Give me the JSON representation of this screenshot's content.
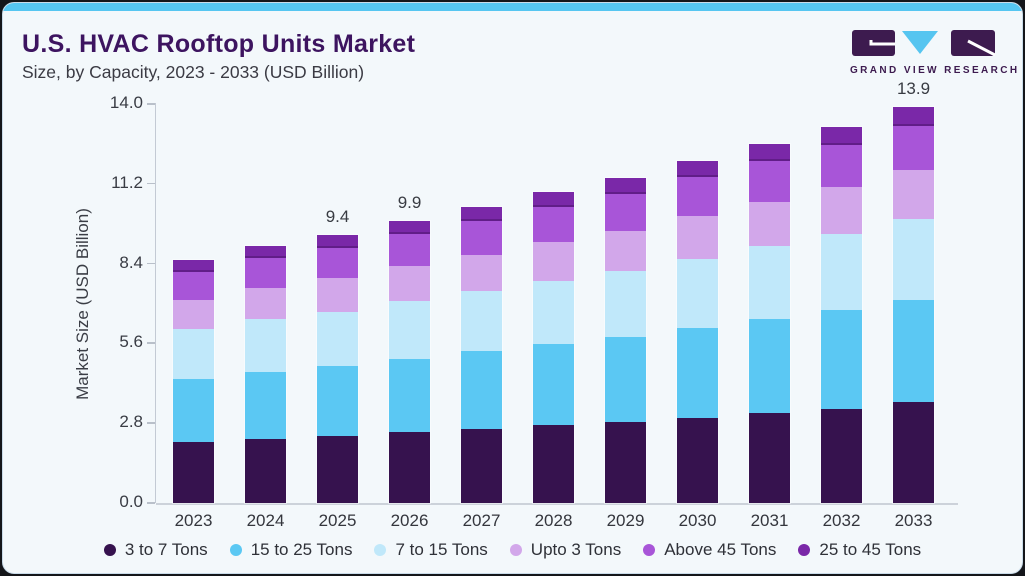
{
  "header": {
    "title": "U.S. HVAC Rooftop Units Market",
    "subtitle": "Size, by Capacity, 2023 - 2033 (USD Billion)",
    "logo_text": "GRAND VIEW RESEARCH"
  },
  "colors": {
    "accent_bar": "#56c6f1",
    "card_background": "#f3f8fb",
    "title_text": "#3d1460",
    "subtitle_text": "#3b3b44",
    "axis_line": "#c3cad4",
    "logo_dark": "#3d1b4f",
    "logo_blue": "#56c5f0"
  },
  "chart_data": {
    "type": "bar",
    "stacked": true,
    "title": "U.S. HVAC Rooftop Units Market Size, by Capacity, 2023 - 2033 (USD Billion)",
    "xlabel": "",
    "ylabel": "Market Size (USD Billion)",
    "ylim": [
      0,
      14
    ],
    "yticks": [
      "0.0",
      "2.8",
      "5.6",
      "8.4",
      "11.2",
      "14.0"
    ],
    "grid": false,
    "legend_position": "bottom",
    "categories": [
      "2023",
      "2024",
      "2025",
      "2026",
      "2027",
      "2028",
      "2029",
      "2030",
      "2031",
      "2032",
      "2033"
    ],
    "series": [
      {
        "name": "3 to 7 Tons",
        "color": "#36124e",
        "values": [
          2.13,
          2.25,
          2.35,
          2.48,
          2.6,
          2.73,
          2.85,
          3.0,
          3.15,
          3.3,
          3.55
        ]
      },
      {
        "name": "15 to 25 Tons",
        "color": "#5bc8f3",
        "values": [
          2.23,
          2.36,
          2.46,
          2.59,
          2.72,
          2.86,
          2.99,
          3.14,
          3.3,
          3.46,
          3.58
        ]
      },
      {
        "name": "7 to 15 Tons",
        "color": "#c0e8fa",
        "values": [
          1.73,
          1.83,
          1.91,
          2.01,
          2.11,
          2.21,
          2.31,
          2.44,
          2.56,
          2.68,
          2.82
        ]
      },
      {
        "name": "Upto 3 Tons",
        "color": "#d2a7ea",
        "values": [
          1.05,
          1.12,
          1.17,
          1.23,
          1.29,
          1.35,
          1.41,
          1.49,
          1.56,
          1.64,
          1.72
        ]
      },
      {
        "name": "Above 45 Tons",
        "color": "#a855d8",
        "values": [
          0.96,
          1.02,
          1.06,
          1.12,
          1.18,
          1.23,
          1.29,
          1.36,
          1.42,
          1.49,
          1.56
        ]
      },
      {
        "name": "25 to 45 Tons",
        "color": "#7a28a8",
        "values": [
          0.41,
          0.43,
          0.45,
          0.48,
          0.5,
          0.52,
          0.55,
          0.58,
          0.6,
          0.63,
          0.67
        ]
      }
    ],
    "totals": [
      8.5,
      9.0,
      9.4,
      9.9,
      10.4,
      10.9,
      11.4,
      12.0,
      12.6,
      13.2,
      13.9
    ],
    "bar_labels": {
      "2025": "9.4",
      "2026": "9.9",
      "2033": "13.9"
    }
  }
}
